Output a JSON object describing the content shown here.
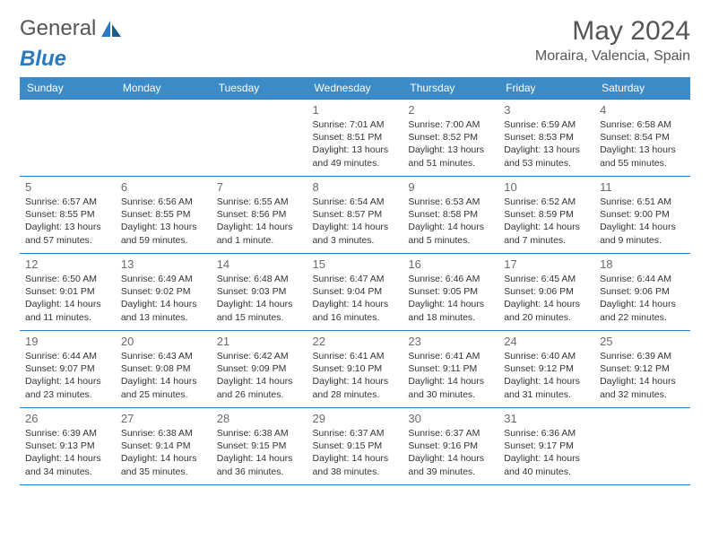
{
  "brand": {
    "word1": "General",
    "word2": "Blue"
  },
  "title": "May 2024",
  "location": "Moraira, Valencia, Spain",
  "colors": {
    "header_bg": "#3b8bc9",
    "border": "#2b7ac0",
    "text": "#333333",
    "muted": "#6a6a6a",
    "brand_blue": "#2b7ac0"
  },
  "weekdays": [
    "Sunday",
    "Monday",
    "Tuesday",
    "Wednesday",
    "Thursday",
    "Friday",
    "Saturday"
  ],
  "labels": {
    "sunrise": "Sunrise:",
    "sunset": "Sunset:",
    "daylight": "Daylight:"
  },
  "weeks": [
    [
      null,
      null,
      null,
      {
        "n": "1",
        "sr": "7:01 AM",
        "ss": "8:51 PM",
        "dl": "13 hours and 49 minutes."
      },
      {
        "n": "2",
        "sr": "7:00 AM",
        "ss": "8:52 PM",
        "dl": "13 hours and 51 minutes."
      },
      {
        "n": "3",
        "sr": "6:59 AM",
        "ss": "8:53 PM",
        "dl": "13 hours and 53 minutes."
      },
      {
        "n": "4",
        "sr": "6:58 AM",
        "ss": "8:54 PM",
        "dl": "13 hours and 55 minutes."
      }
    ],
    [
      {
        "n": "5",
        "sr": "6:57 AM",
        "ss": "8:55 PM",
        "dl": "13 hours and 57 minutes."
      },
      {
        "n": "6",
        "sr": "6:56 AM",
        "ss": "8:55 PM",
        "dl": "13 hours and 59 minutes."
      },
      {
        "n": "7",
        "sr": "6:55 AM",
        "ss": "8:56 PM",
        "dl": "14 hours and 1 minute."
      },
      {
        "n": "8",
        "sr": "6:54 AM",
        "ss": "8:57 PM",
        "dl": "14 hours and 3 minutes."
      },
      {
        "n": "9",
        "sr": "6:53 AM",
        "ss": "8:58 PM",
        "dl": "14 hours and 5 minutes."
      },
      {
        "n": "10",
        "sr": "6:52 AM",
        "ss": "8:59 PM",
        "dl": "14 hours and 7 minutes."
      },
      {
        "n": "11",
        "sr": "6:51 AM",
        "ss": "9:00 PM",
        "dl": "14 hours and 9 minutes."
      }
    ],
    [
      {
        "n": "12",
        "sr": "6:50 AM",
        "ss": "9:01 PM",
        "dl": "14 hours and 11 minutes."
      },
      {
        "n": "13",
        "sr": "6:49 AM",
        "ss": "9:02 PM",
        "dl": "14 hours and 13 minutes."
      },
      {
        "n": "14",
        "sr": "6:48 AM",
        "ss": "9:03 PM",
        "dl": "14 hours and 15 minutes."
      },
      {
        "n": "15",
        "sr": "6:47 AM",
        "ss": "9:04 PM",
        "dl": "14 hours and 16 minutes."
      },
      {
        "n": "16",
        "sr": "6:46 AM",
        "ss": "9:05 PM",
        "dl": "14 hours and 18 minutes."
      },
      {
        "n": "17",
        "sr": "6:45 AM",
        "ss": "9:06 PM",
        "dl": "14 hours and 20 minutes."
      },
      {
        "n": "18",
        "sr": "6:44 AM",
        "ss": "9:06 PM",
        "dl": "14 hours and 22 minutes."
      }
    ],
    [
      {
        "n": "19",
        "sr": "6:44 AM",
        "ss": "9:07 PM",
        "dl": "14 hours and 23 minutes."
      },
      {
        "n": "20",
        "sr": "6:43 AM",
        "ss": "9:08 PM",
        "dl": "14 hours and 25 minutes."
      },
      {
        "n": "21",
        "sr": "6:42 AM",
        "ss": "9:09 PM",
        "dl": "14 hours and 26 minutes."
      },
      {
        "n": "22",
        "sr": "6:41 AM",
        "ss": "9:10 PM",
        "dl": "14 hours and 28 minutes."
      },
      {
        "n": "23",
        "sr": "6:41 AM",
        "ss": "9:11 PM",
        "dl": "14 hours and 30 minutes."
      },
      {
        "n": "24",
        "sr": "6:40 AM",
        "ss": "9:12 PM",
        "dl": "14 hours and 31 minutes."
      },
      {
        "n": "25",
        "sr": "6:39 AM",
        "ss": "9:12 PM",
        "dl": "14 hours and 32 minutes."
      }
    ],
    [
      {
        "n": "26",
        "sr": "6:39 AM",
        "ss": "9:13 PM",
        "dl": "14 hours and 34 minutes."
      },
      {
        "n": "27",
        "sr": "6:38 AM",
        "ss": "9:14 PM",
        "dl": "14 hours and 35 minutes."
      },
      {
        "n": "28",
        "sr": "6:38 AM",
        "ss": "9:15 PM",
        "dl": "14 hours and 36 minutes."
      },
      {
        "n": "29",
        "sr": "6:37 AM",
        "ss": "9:15 PM",
        "dl": "14 hours and 38 minutes."
      },
      {
        "n": "30",
        "sr": "6:37 AM",
        "ss": "9:16 PM",
        "dl": "14 hours and 39 minutes."
      },
      {
        "n": "31",
        "sr": "6:36 AM",
        "ss": "9:17 PM",
        "dl": "14 hours and 40 minutes."
      },
      null
    ]
  ]
}
